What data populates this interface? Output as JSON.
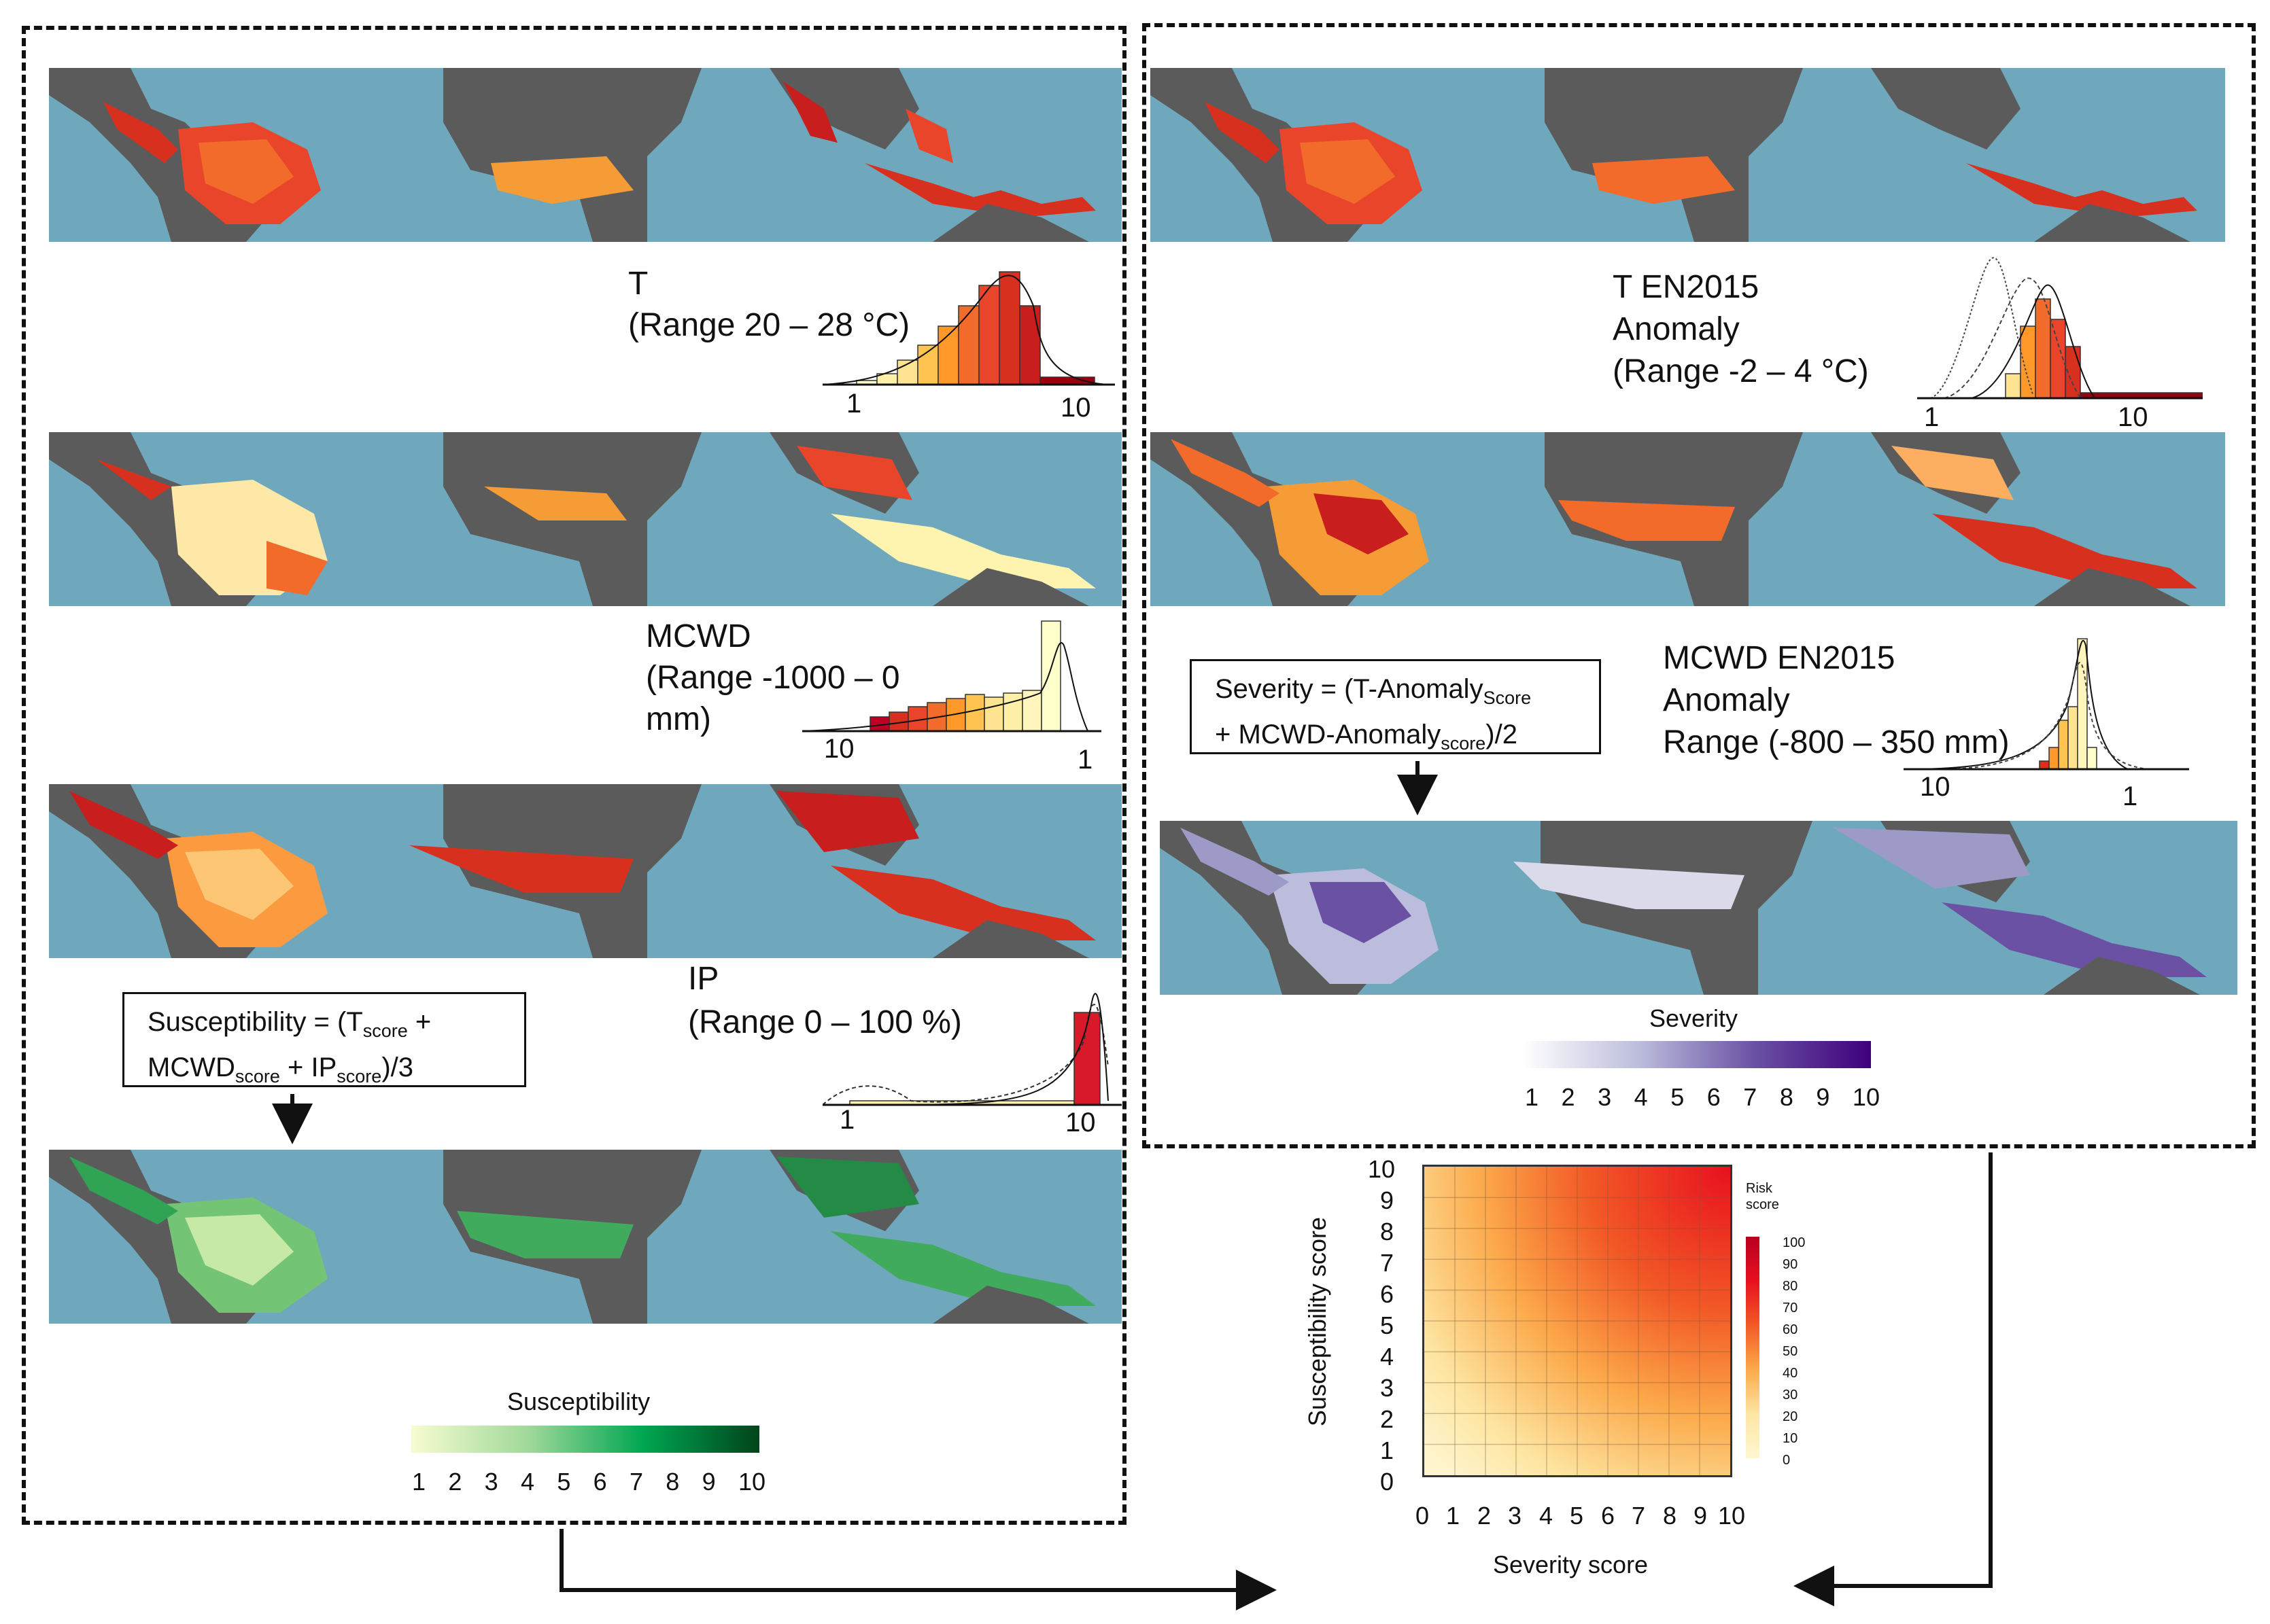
{
  "left_panel": {
    "t": {
      "title": "T",
      "range": "(Range 20 – 28 °C)",
      "tick_low": "1",
      "tick_high": "10"
    },
    "mcwd": {
      "title": "MCWD",
      "range_line1": "(Range -1000 – 0",
      "range_line2": "mm)",
      "tick_low": "10",
      "tick_high": "1"
    },
    "ip": {
      "title": "IP",
      "range": "(Range 0 – 100 %)",
      "tick_low": "1",
      "tick_high": "10"
    },
    "formula": {
      "line1_a": "Susceptibility = (T",
      "line1_sub": "score",
      "line1_b": " +",
      "line2_a": "MCWD",
      "line2_sub1": "score",
      "line2_b": " + IP",
      "line2_sub2": "score",
      "line2_c": ")/3"
    },
    "legend": {
      "title": "Susceptibility",
      "numbers": [
        "1",
        "2",
        "3",
        "4",
        "5",
        "6",
        "7",
        "8",
        "9",
        "10"
      ],
      "colors": [
        "#f7fcd0",
        "#00a651",
        "#00441b"
      ]
    }
  },
  "right_panel": {
    "t_anom": {
      "title": "T EN2015",
      "line2": "Anomaly",
      "range": "(Range -2 – 4 °C)",
      "tick_low": "1",
      "tick_high": "10"
    },
    "mcwd_anom": {
      "title": "MCWD EN2015",
      "line2": "Anomaly",
      "range": "Range (-800 – 350 mm)",
      "tick_low": "10",
      "tick_high": "1"
    },
    "formula": {
      "line1_a": "Severity = (T-Anomaly",
      "line1_sub": "Score",
      "line2_a": "+ MCWD-Anomaly",
      "line2_sub": "score",
      "line2_b": ")/2"
    },
    "legend": {
      "title": "Severity",
      "numbers": [
        "1",
        "2",
        "3",
        "4",
        "5",
        "6",
        "7",
        "8",
        "9",
        "10"
      ],
      "colors": [
        "#ffffff",
        "#3f007d"
      ]
    }
  },
  "risk": {
    "y_title": "Susceptibility score",
    "x_title": "Severity score",
    "y_ticks": [
      "10",
      "9",
      "8",
      "7",
      "6",
      "5",
      "4",
      "3",
      "2",
      "1",
      "0"
    ],
    "x_ticks": [
      "0",
      "1",
      "2",
      "3",
      "4",
      "5",
      "6",
      "7",
      "8",
      "9",
      "10"
    ],
    "legend_title_1": "Risk",
    "legend_title_2": "score",
    "legend_ticks": [
      "100",
      "90",
      "80",
      "70",
      "60",
      "50",
      "40",
      "30",
      "20",
      "10",
      "0"
    ]
  },
  "colors": {
    "ocean": "#6fa8bc",
    "land": "#5b5b5b",
    "heat_low": "#fff7bc",
    "heat_high": "#bd0026"
  }
}
